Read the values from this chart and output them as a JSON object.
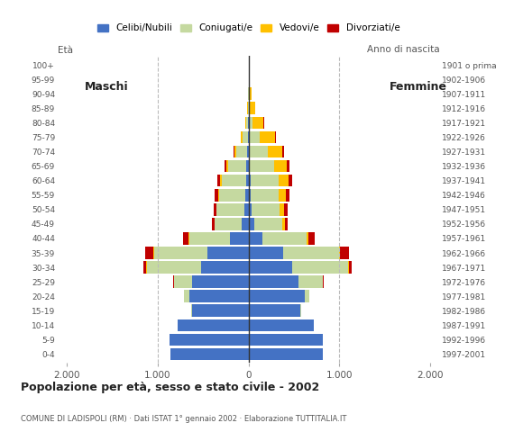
{
  "age_groups": [
    "0-4",
    "5-9",
    "10-14",
    "15-19",
    "20-24",
    "25-29",
    "30-34",
    "35-39",
    "40-44",
    "45-49",
    "50-54",
    "55-59",
    "60-64",
    "65-69",
    "70-74",
    "75-79",
    "80-84",
    "85-89",
    "90-94",
    "95-99",
    "100+"
  ],
  "birth_years": [
    "1997-2001",
    "1992-1996",
    "1987-1991",
    "1982-1986",
    "1977-1981",
    "1972-1976",
    "1967-1971",
    "1962-1966",
    "1957-1961",
    "1952-1956",
    "1947-1951",
    "1942-1946",
    "1937-1941",
    "1932-1936",
    "1927-1931",
    "1922-1926",
    "1917-1921",
    "1912-1916",
    "1907-1911",
    "1902-1906",
    "1901 o prima"
  ],
  "males": {
    "celibe": [
      860,
      870,
      780,
      620,
      650,
      620,
      520,
      450,
      200,
      70,
      40,
      30,
      25,
      20,
      10,
      5,
      3,
      0,
      0,
      0,
      0
    ],
    "coniugato": [
      0,
      0,
      0,
      10,
      60,
      200,
      600,
      590,
      450,
      300,
      310,
      290,
      270,
      200,
      120,
      55,
      20,
      5,
      2,
      0,
      0
    ],
    "vedovo": [
      0,
      0,
      0,
      0,
      0,
      0,
      2,
      3,
      5,
      5,
      5,
      15,
      20,
      20,
      25,
      20,
      15,
      5,
      2,
      0,
      0
    ],
    "divorziato": [
      0,
      0,
      0,
      0,
      2,
      5,
      30,
      90,
      60,
      25,
      30,
      35,
      30,
      20,
      10,
      5,
      0,
      0,
      0,
      0,
      0
    ]
  },
  "females": {
    "celibe": [
      820,
      820,
      720,
      570,
      620,
      550,
      480,
      380,
      150,
      60,
      35,
      25,
      20,
      15,
      10,
      5,
      3,
      0,
      0,
      0,
      0
    ],
    "coniugato": [
      0,
      0,
      0,
      10,
      50,
      270,
      620,
      620,
      490,
      310,
      310,
      310,
      310,
      270,
      200,
      120,
      45,
      15,
      5,
      0,
      0
    ],
    "vedovo": [
      0,
      0,
      0,
      0,
      0,
      2,
      5,
      10,
      20,
      30,
      50,
      80,
      110,
      140,
      160,
      170,
      120,
      60,
      25,
      5,
      2
    ],
    "divorziato": [
      0,
      0,
      0,
      0,
      2,
      8,
      35,
      100,
      70,
      30,
      35,
      40,
      40,
      30,
      20,
      10,
      5,
      0,
      0,
      0,
      0
    ]
  },
  "colors": {
    "celibe": "#4472c4",
    "coniugato": "#c5d9a0",
    "vedovo": "#ffc000",
    "divorziato": "#c00000"
  },
  "legend_labels": [
    "Celibi/Nubili",
    "Coniugati/e",
    "Vedovi/e",
    "Divorziati/e"
  ],
  "xlim": 2100,
  "xticks": [
    -2000,
    -1000,
    0,
    1000,
    2000
  ],
  "xticklabels": [
    "2.000",
    "1.000",
    "0",
    "1.000",
    "2.000"
  ],
  "title": "Popolazione per età, sesso e stato civile - 2002",
  "subtitle": "COMUNE DI LADISPOLI (RM) · Dati ISTAT 1° gennaio 2002 · Elaborazione TUTTITALIA.IT",
  "ylabel_left": "Età",
  "ylabel_right": "Anno di nascita",
  "label_maschi": "Maschi",
  "label_femmine": "Femmine",
  "bg_color": "#ffffff",
  "bar_height": 0.85
}
